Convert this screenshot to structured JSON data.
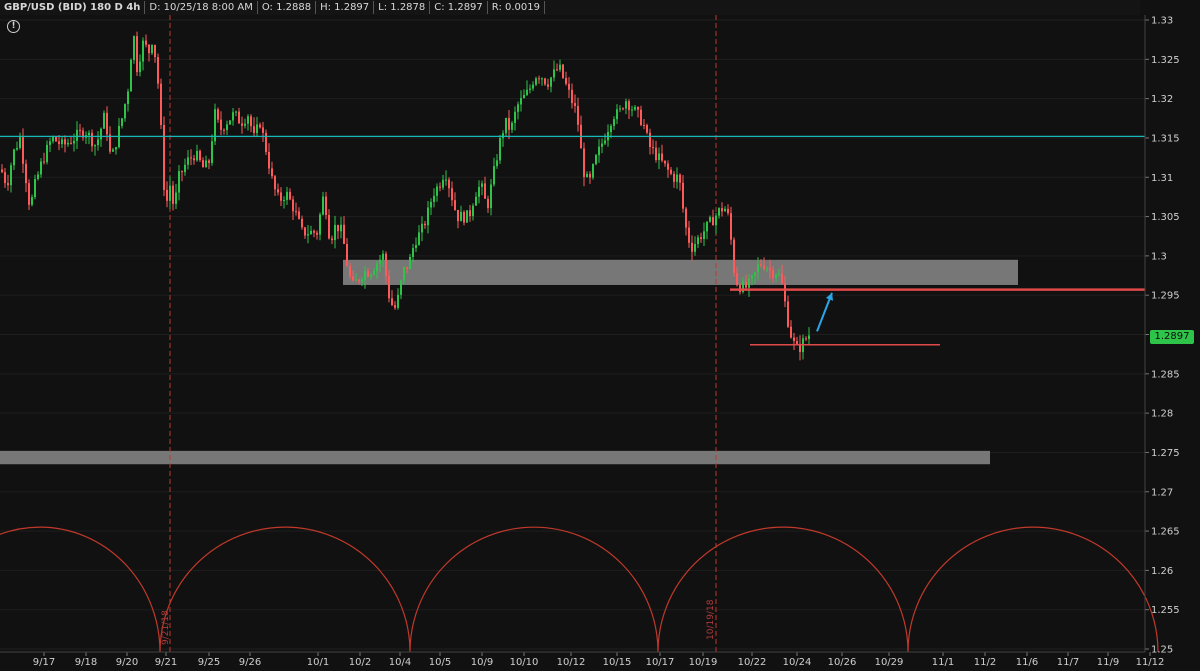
{
  "header": {
    "title": "GBP/USD (BID) 180 D 4h",
    "date": "D: 10/25/18 8:00 AM",
    "open": "O: 1.2888",
    "high": "H: 1.2897",
    "low": "L: 1.2878",
    "close": "C: 1.2897",
    "range": "R: 0.0019"
  },
  "last_price_label": "1.2897",
  "cycle_labels": [
    "9/21/18",
    "10/19/18"
  ],
  "colors": {
    "background": "#111111",
    "up_candle": "#2ec44a",
    "down_candle": "#ff5a5a",
    "cycle_line": "#c0392b",
    "zone": "#8a8a8a",
    "support_line": "#19b8b8",
    "arrow": "#2aa6e8"
  },
  "chart_data": {
    "type": "candlestick",
    "symbol": "GBP/USD",
    "ylim": [
      1.25,
      1.33
    ],
    "yticks": [
      "1.25",
      "1.255",
      "1.26",
      "1.265",
      "1.27",
      "1.275",
      "1.28",
      "1.285",
      "1.29",
      "1.295",
      "1.3",
      "1.305",
      "1.31",
      "1.315",
      "1.32",
      "1.325",
      "1.33"
    ],
    "xticks": [
      "9/17",
      "9/18",
      "9/20",
      "9/21",
      "9/25",
      "9/26",
      "10/1",
      "10/2",
      "10/4",
      "10/5",
      "10/9",
      "10/10",
      "10/12",
      "10/15",
      "10/17",
      "10/19",
      "10/22",
      "10/24",
      "10/26",
      "10/29",
      "11/1",
      "11/2",
      "11/6",
      "11/7",
      "11/9",
      "11/12"
    ],
    "close_path": [
      [
        0,
        1.311
      ],
      [
        6,
        1.309
      ],
      [
        12,
        1.313
      ],
      [
        19,
        1.315
      ],
      [
        26,
        1.309
      ],
      [
        29,
        1.306
      ],
      [
        34,
        1.309
      ],
      [
        41,
        1.312
      ],
      [
        51,
        1.315
      ],
      [
        62,
        1.314
      ],
      [
        73,
        1.315
      ],
      [
        84,
        1.316
      ],
      [
        95,
        1.314
      ],
      [
        104,
        1.318
      ],
      [
        110,
        1.312
      ],
      [
        116,
        1.315
      ],
      [
        122,
        1.318
      ],
      [
        128,
        1.322
      ],
      [
        132,
        1.329
      ],
      [
        136,
        1.324
      ],
      [
        142,
        1.327
      ],
      [
        148,
        1.326
      ],
      [
        152,
        1.328
      ],
      [
        157,
        1.322
      ],
      [
        161,
        1.314
      ],
      [
        163,
        1.309
      ],
      [
        166,
        1.307
      ],
      [
        169,
        1.309
      ],
      [
        173,
        1.306
      ],
      [
        178,
        1.31
      ],
      [
        186,
        1.312
      ],
      [
        194,
        1.313
      ],
      [
        203,
        1.311
      ],
      [
        208,
        1.312
      ],
      [
        214,
        1.318
      ],
      [
        219,
        1.316
      ],
      [
        225,
        1.317
      ],
      [
        233,
        1.318
      ],
      [
        240,
        1.317
      ],
      [
        247,
        1.318
      ],
      [
        253,
        1.315
      ],
      [
        259,
        1.317
      ],
      [
        266,
        1.313
      ],
      [
        272,
        1.309
      ],
      [
        278,
        1.307
      ],
      [
        285,
        1.308
      ],
      [
        293,
        1.306
      ],
      [
        301,
        1.303
      ],
      [
        309,
        1.303
      ],
      [
        316,
        1.303
      ],
      [
        323,
        1.308
      ],
      [
        329,
        1.302
      ],
      [
        335,
        1.304
      ],
      [
        341,
        1.303
      ],
      [
        346,
        1.299
      ],
      [
        351,
        1.296
      ],
      [
        357,
        1.297
      ],
      [
        363,
        1.298
      ],
      [
        369,
        1.298
      ],
      [
        375,
        1.299
      ],
      [
        382,
        1.3
      ],
      [
        388,
        1.295
      ],
      [
        393,
        1.293
      ],
      [
        398,
        1.295
      ],
      [
        402,
        1.298
      ],
      [
        408,
        1.299
      ],
      [
        414,
        1.302
      ],
      [
        420,
        1.303
      ],
      [
        426,
        1.305
      ],
      [
        432,
        1.308
      ],
      [
        438,
        1.309
      ],
      [
        444,
        1.311
      ],
      [
        450,
        1.308
      ],
      [
        456,
        1.305
      ],
      [
        462,
        1.305
      ],
      [
        468,
        1.305
      ],
      [
        474,
        1.308
      ],
      [
        480,
        1.309
      ],
      [
        486,
        1.306
      ],
      [
        492,
        1.31
      ],
      [
        498,
        1.314
      ],
      [
        504,
        1.317
      ],
      [
        510,
        1.316
      ],
      [
        516,
        1.319
      ],
      [
        522,
        1.32
      ],
      [
        528,
        1.321
      ],
      [
        534,
        1.323
      ],
      [
        540,
        1.323
      ],
      [
        546,
        1.322
      ],
      [
        552,
        1.323
      ],
      [
        558,
        1.324
      ],
      [
        564,
        1.322
      ],
      [
        570,
        1.32
      ],
      [
        576,
        1.318
      ],
      [
        582,
        1.311
      ],
      [
        588,
        1.309
      ],
      [
        594,
        1.312
      ],
      [
        600,
        1.314
      ],
      [
        606,
        1.316
      ],
      [
        612,
        1.318
      ],
      [
        618,
        1.318
      ],
      [
        624,
        1.32
      ],
      [
        630,
        1.319
      ],
      [
        636,
        1.318
      ],
      [
        642,
        1.317
      ],
      [
        648,
        1.314
      ],
      [
        654,
        1.313
      ],
      [
        660,
        1.312
      ],
      [
        666,
        1.311
      ],
      [
        672,
        1.31
      ],
      [
        678,
        1.31
      ],
      [
        684,
        1.304
      ],
      [
        690,
        1.301
      ],
      [
        696,
        1.302
      ],
      [
        702,
        1.303
      ],
      [
        708,
        1.304
      ],
      [
        714,
        1.305
      ],
      [
        720,
        1.306
      ],
      [
        726,
        1.306
      ],
      [
        730,
        1.302
      ],
      [
        734,
        1.297
      ],
      [
        740,
        1.296
      ],
      [
        746,
        1.296
      ],
      [
        752,
        1.297
      ],
      [
        758,
        1.299
      ],
      [
        764,
        1.299
      ],
      [
        770,
        1.298
      ],
      [
        776,
        1.298
      ],
      [
        780,
        1.297
      ],
      [
        784,
        1.294
      ],
      [
        788,
        1.291
      ],
      [
        792,
        1.289
      ],
      [
        797,
        1.288
      ],
      [
        802,
        1.289
      ],
      [
        808,
        1.29
      ]
    ],
    "zones": [
      {
        "x_start": 343,
        "x_end": 1018,
        "y_low": 1.2963,
        "y_high": 1.2995
      },
      {
        "x_start": 0,
        "x_end": 990,
        "y_low": 1.2735,
        "y_high": 1.2752
      }
    ],
    "hlines": [
      {
        "y": 1.3152,
        "x_start": 0,
        "x_end": 1145,
        "style": "support"
      },
      {
        "y": 1.2957,
        "x_start": 730,
        "x_end": 1145,
        "style": "resistance"
      },
      {
        "y": 1.2887,
        "x_start": 750,
        "x_end": 940,
        "style": "level"
      }
    ],
    "arrow": {
      "x1": 817,
      "y1": 1.2904,
      "x2": 832,
      "y2": 1.2953
    },
    "cycle_arcs": [
      {
        "x_start": -80,
        "x_end": 160,
        "peak": 1.2655
      },
      {
        "x_start": 160,
        "x_end": 410,
        "peak": 1.2655
      },
      {
        "x_start": 410,
        "x_end": 658,
        "peak": 1.2655
      },
      {
        "x_start": 658,
        "x_end": 908,
        "peak": 1.2655
      },
      {
        "x_start": 908,
        "x_end": 1158,
        "peak": 1.2655
      }
    ],
    "cycle_vlines": [
      170,
      716
    ],
    "last_price": 1.2897
  }
}
